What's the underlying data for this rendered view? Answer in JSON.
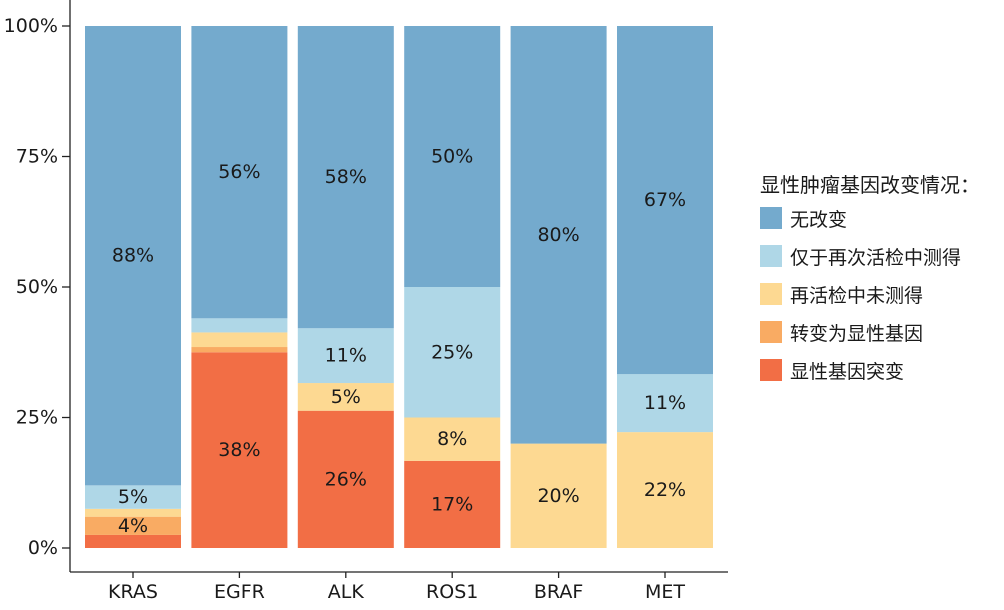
{
  "chart_data": {
    "type": "bar",
    "stacked": true,
    "percent_scale": true,
    "categories": [
      "KRAS",
      "EGFR",
      "ALK",
      "ROS1",
      "BRAF",
      "MET"
    ],
    "ylim": [
      0,
      100
    ],
    "yticks": [
      0,
      25,
      50,
      75,
      100
    ],
    "ytick_labels": [
      "0%",
      "25%",
      "50%",
      "75%",
      "100%"
    ],
    "legend_title": "显性肿瘤基因改变情况：",
    "legend_position": "right",
    "grid": false,
    "series": [
      {
        "name": "显性基因突变",
        "color": "#f26e45",
        "values": [
          2.5,
          37.5,
          26.3,
          16.7,
          0,
          0
        ],
        "labels": [
          "",
          "38%",
          "26%",
          "17%",
          "",
          ""
        ]
      },
      {
        "name": "转变为显性基因",
        "color": "#f9ab63",
        "values": [
          3.5,
          1.0,
          0,
          0,
          0,
          0
        ],
        "labels": [
          "4%",
          "",
          "",
          "",
          "",
          ""
        ]
      },
      {
        "name": "再活检中未测得",
        "color": "#fdd992",
        "values": [
          1.5,
          2.8,
          5.3,
          8.3,
          20,
          22.2
        ],
        "labels": [
          "",
          "",
          "5%",
          "8%",
          "20%",
          "22%"
        ]
      },
      {
        "name": "仅于再次活检中测得",
        "color": "#afd7e7",
        "values": [
          4.5,
          2.7,
          10.5,
          25.0,
          0,
          11.1
        ],
        "labels": [
          "5%",
          "",
          "11%",
          "25%",
          "",
          "11%"
        ]
      },
      {
        "name": "无改变",
        "color": "#74aacd",
        "values": [
          88.0,
          56.0,
          57.9,
          50.0,
          80,
          66.7
        ],
        "labels": [
          "88%",
          "56%",
          "58%",
          "50%",
          "80%",
          "67%"
        ]
      }
    ]
  }
}
